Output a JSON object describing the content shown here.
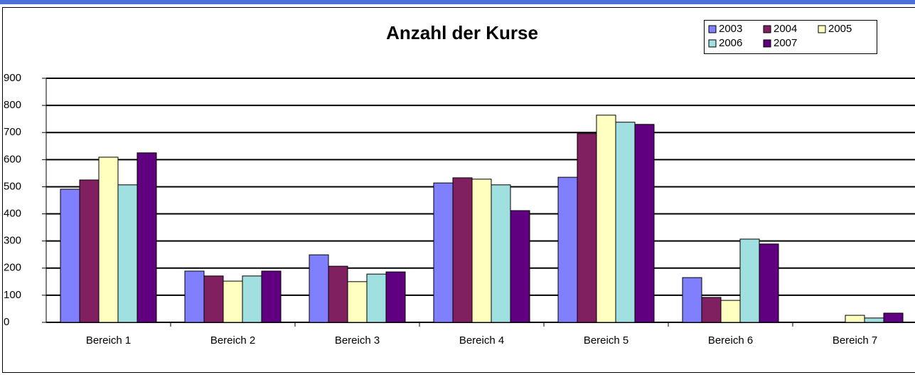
{
  "chart_data": {
    "type": "bar",
    "title": "Anzahl der Kurse",
    "categories": [
      "Bereich 1",
      "Bereich 2",
      "Bereich 3",
      "Bereich 4",
      "Bereich 5",
      "Bereich 6",
      "Bereich 7"
    ],
    "series": [
      {
        "name": "2003",
        "color": "#8080ff",
        "values": [
          491,
          189,
          249,
          514,
          535,
          165,
          0
        ]
      },
      {
        "name": "2004",
        "color": "#802060",
        "values": [
          525,
          171,
          207,
          533,
          696,
          92,
          0
        ]
      },
      {
        "name": "2005",
        "color": "#ffffc0",
        "values": [
          609,
          152,
          150,
          528,
          764,
          81,
          26
        ]
      },
      {
        "name": "2006",
        "color": "#a0e0e0",
        "values": [
          507,
          171,
          178,
          507,
          738,
          307,
          16
        ]
      },
      {
        "name": "2007",
        "color": "#600080",
        "values": [
          625,
          189,
          186,
          412,
          730,
          289,
          34
        ]
      }
    ],
    "ylim": [
      0,
      900
    ],
    "yticks": [
      0,
      100,
      200,
      300,
      400,
      500,
      600,
      700,
      800,
      900
    ],
    "grid": true,
    "legend": "top-right"
  }
}
